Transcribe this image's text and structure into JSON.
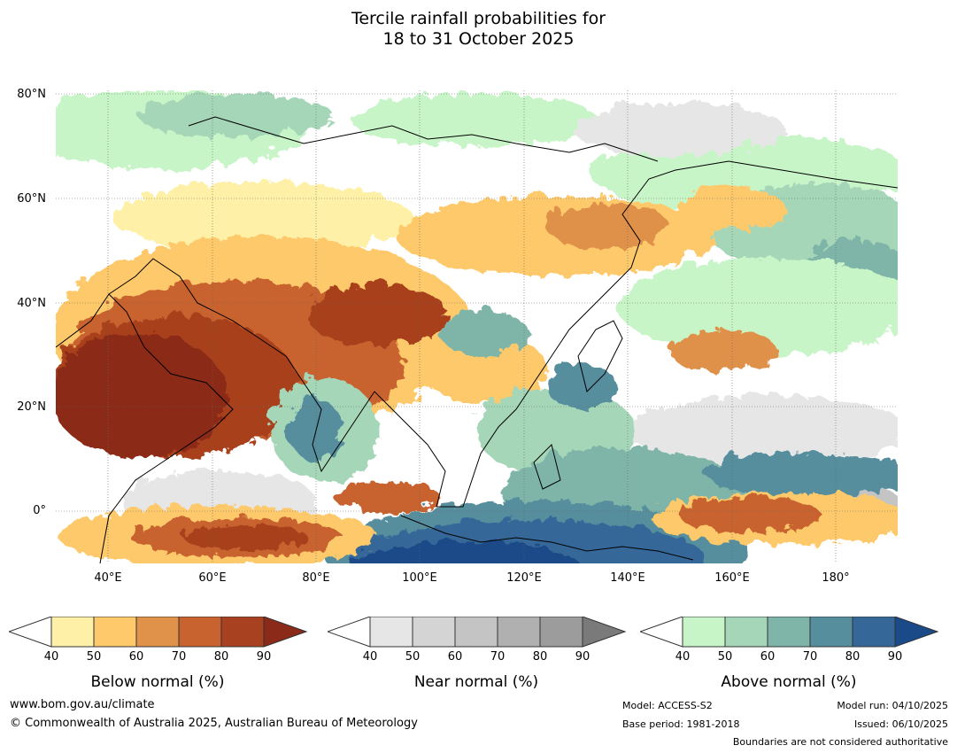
{
  "title": {
    "line1": "Tercile rainfall probabilities for",
    "line2": "18 to 31 October 2025"
  },
  "map": {
    "lat_ticks": [
      "80°N",
      "60°N",
      "40°N",
      "20°N",
      "0°"
    ],
    "lon_ticks": [
      "40°E",
      "60°E",
      "80°E",
      "100°E",
      "120°E",
      "140°E",
      "160°E",
      "180°"
    ]
  },
  "colorbars": [
    {
      "title": "Below normal (%)",
      "levels": [
        "40",
        "50",
        "60",
        "70",
        "80",
        "90"
      ],
      "colors": [
        "#fff0a8",
        "#fdc96a",
        "#e0914a",
        "#c8622f",
        "#a8411f",
        "#8b2a18"
      ]
    },
    {
      "title": "Near normal (%)",
      "levels": [
        "40",
        "50",
        "60",
        "70",
        "80",
        "90"
      ],
      "colors": [
        "#e6e6e6",
        "#d4d4d4",
        "#c4c4c4",
        "#b0b0b0",
        "#9c9c9c",
        "#7a7a7a"
      ]
    },
    {
      "title": "Above normal (%)",
      "levels": [
        "40",
        "50",
        "60",
        "70",
        "80",
        "90"
      ],
      "colors": [
        "#c8f5c8",
        "#a6d6b8",
        "#7fb5a8",
        "#568e9e",
        "#356898",
        "#1a4a88"
      ]
    }
  ],
  "footer": {
    "website": "www.bom.gov.au/climate",
    "copyright": "© Commonwealth of Australia 2025, Australian Bureau of Meteorology",
    "model": "Model: ACCESS-S2",
    "base_period": "Base period: 1981-2018",
    "model_run": "Model run: 04/10/2025",
    "issued": "Issued: 06/10/2025",
    "boundaries": "Boundaries are not considered authoritative"
  }
}
